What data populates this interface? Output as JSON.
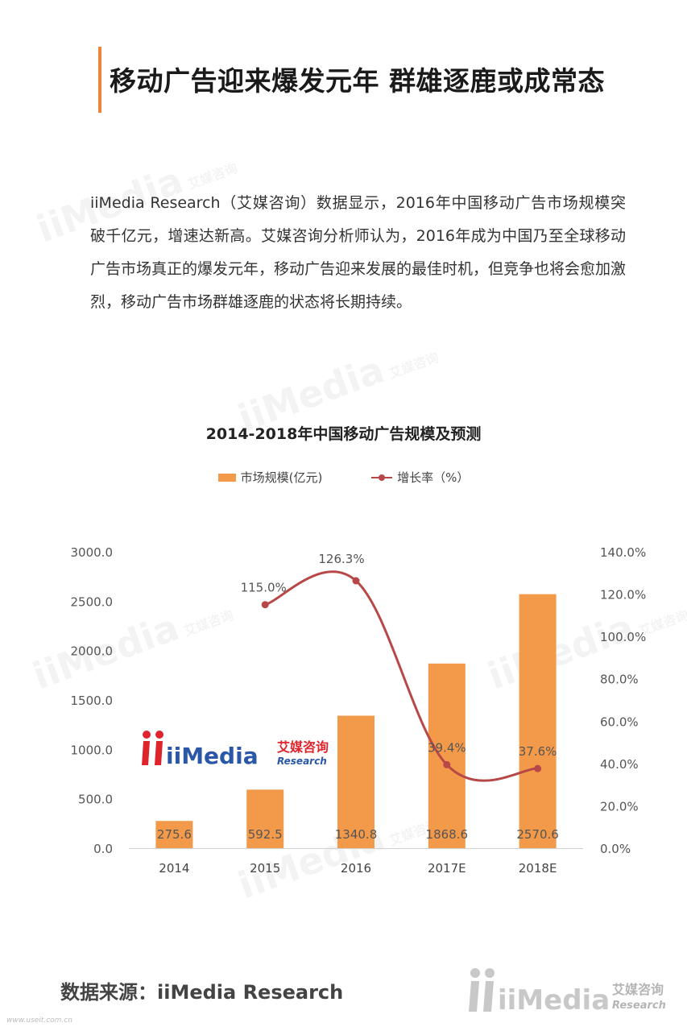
{
  "page": {
    "title": "移动广告迎来爆发元年 群雄逐鹿或成常态",
    "intro": "iiMedia Research（艾媒咨询）数据显示，2016年中国移动广告市场规模突破千亿元，增速达新高。艾媒咨询分析师认为，2016年成为中国乃至全球移动广告市场真正的爆发元年，移动广告迎来发展的最佳时机，但竞争也将会愈加激烈，移动广告市场群雄逐鹿的状态将长期持续。",
    "source": "数据来源：iiMedia Research",
    "footer_url": "www.useit.com.cn"
  },
  "brand": {
    "logo_text": "iiMedia",
    "logo_cn": "艾媒咨询",
    "logo_en": "Research",
    "accent": "#f0823a",
    "logo_red": "#e0242b",
    "logo_blue": "#2a57a8"
  },
  "chart_data": {
    "type": "bar",
    "title": "2014-2018年中国移动广告规模及预测",
    "categories": [
      "2014",
      "2015",
      "2016",
      "2017E",
      "2018E"
    ],
    "series": [
      {
        "name": "市场规模(亿元)",
        "type": "bar",
        "axis": "left",
        "color": "#f39a4a",
        "values": [
          275.6,
          592.5,
          1340.8,
          1868.6,
          2570.6
        ],
        "labels": [
          "275.6",
          "592.5",
          "1340.8",
          "1868.6",
          "2570.6"
        ]
      },
      {
        "name": "增长率（%）",
        "type": "line",
        "axis": "right",
        "color": "#b84848",
        "values": [
          null,
          115.0,
          126.3,
          39.4,
          37.6
        ],
        "labels": [
          "",
          "115.0%",
          "126.3%",
          "39.4%",
          "37.6%"
        ]
      }
    ],
    "y_left": {
      "ylim": [
        0,
        3000
      ],
      "ticks": [
        "0.0",
        "500.0",
        "1000.0",
        "1500.0",
        "2000.0",
        "2500.0",
        "3000.0"
      ]
    },
    "y_right": {
      "ylim": [
        0,
        140
      ],
      "ticks": [
        "0.0%",
        "20.0%",
        "40.0%",
        "60.0%",
        "80.0%",
        "100.0%",
        "120.0%",
        "140.0%"
      ]
    },
    "grid": false,
    "legend": "top-center"
  }
}
